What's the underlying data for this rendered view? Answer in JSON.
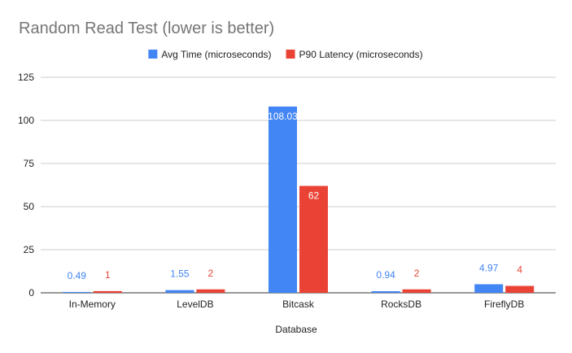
{
  "chart_data": {
    "type": "bar",
    "title": "Random Read Test (lower is better)",
    "xlabel": "Database",
    "ylabel": "",
    "categories": [
      "In-Memory",
      "LevelDB",
      "Bitcask",
      "RocksDB",
      "FireflyDB"
    ],
    "series": [
      {
        "name": "Avg Time (microseconds)",
        "color": "#4285f4",
        "values": [
          0.49,
          1.55,
          108.03,
          0.94,
          4.97
        ],
        "labels": [
          "0.49",
          "1.55",
          "108.03",
          "0.94",
          "4.97"
        ]
      },
      {
        "name": "P90 Latency (microseconds)",
        "color": "#ea4335",
        "values": [
          1,
          2,
          62,
          2,
          4
        ],
        "labels": [
          "1",
          "2",
          "62",
          "2",
          "4"
        ]
      }
    ],
    "ylim": [
      0,
      125
    ],
    "yticks": [
      0,
      25,
      50,
      75,
      100,
      125
    ],
    "ytick_labels": [
      "0",
      "25",
      "50",
      "75",
      "100",
      "125"
    ],
    "grid": true,
    "legend_position": "top"
  }
}
